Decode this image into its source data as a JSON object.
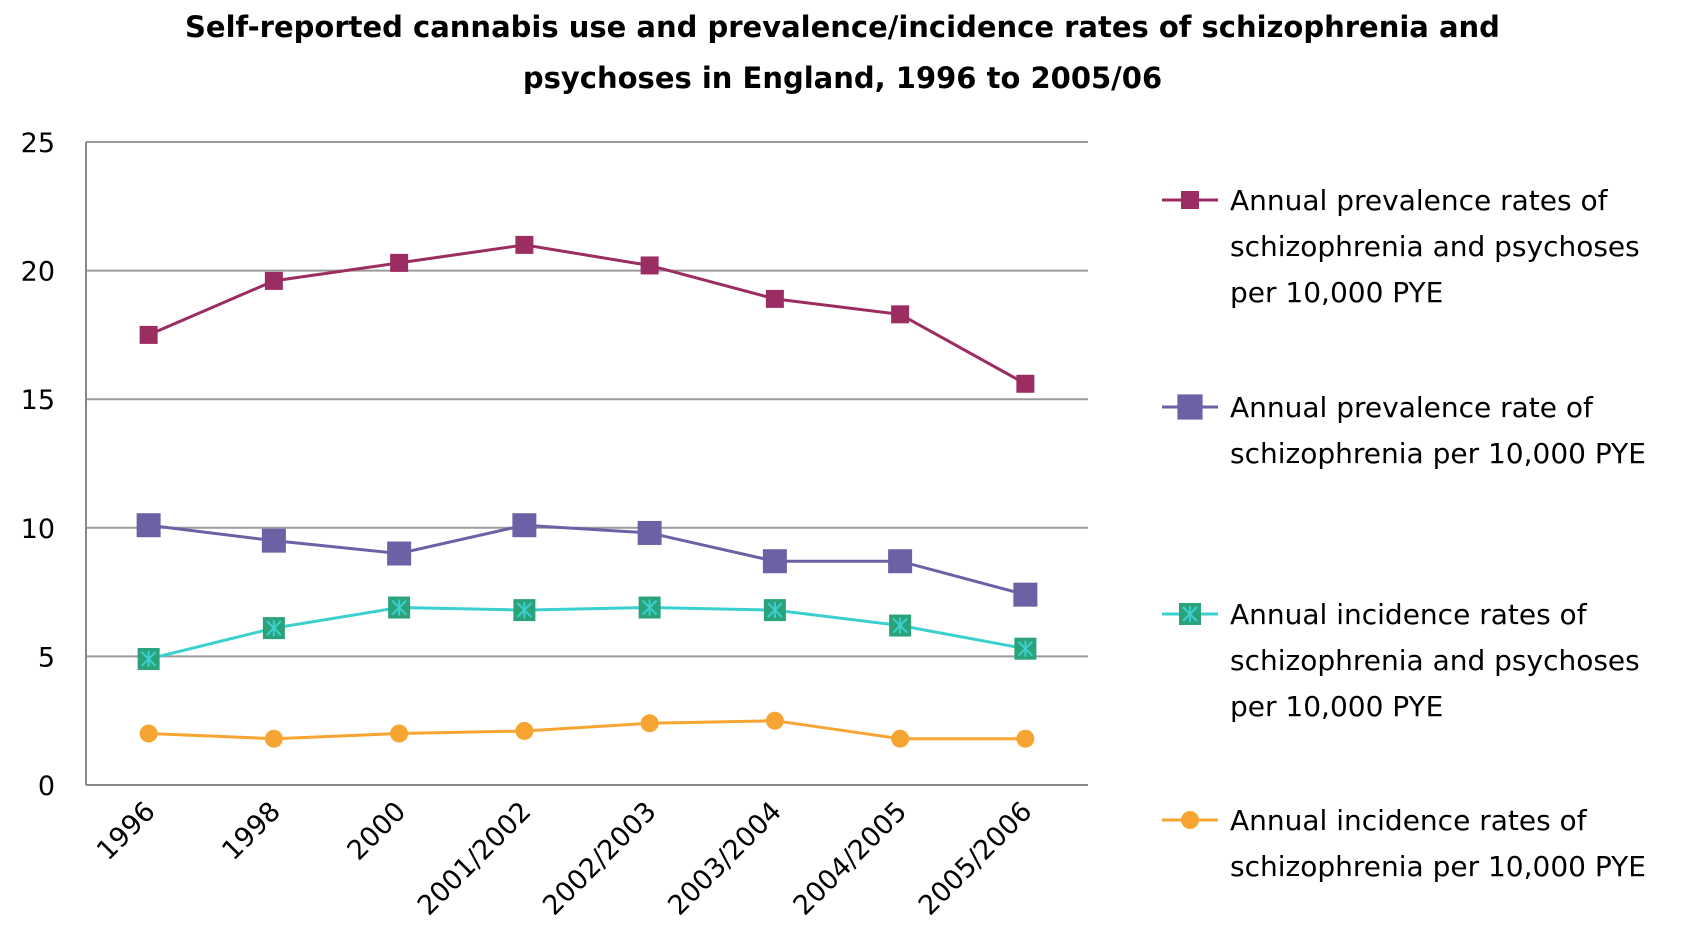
{
  "chart_data": {
    "type": "line",
    "title_lines": [
      "Self-reported cannabis use and prevalence/incidence rates of schizophrenia and",
      "psychoses in England, 1996 to 2005/06"
    ],
    "categories": [
      "1996",
      "1998",
      "2000",
      "2001/2002",
      "2002/2003",
      "2003/2004",
      "2004/2005",
      "2005/2006"
    ],
    "ylim": [
      0,
      25
    ],
    "yticks": [
      "0",
      "5",
      "10",
      "15",
      "20",
      "25"
    ],
    "grid": true,
    "legend_position": "right",
    "series": [
      {
        "name": "Annual prevalence rates of schizophrenia and psychoses per 10,000 PYE",
        "name_lines": [
          "Annual prevalence rates of",
          "schizophrenia and psychoses",
          "per 10,000 PYE"
        ],
        "values": [
          17.5,
          19.6,
          20.3,
          21.0,
          20.2,
          18.9,
          18.3,
          15.6
        ],
        "color": "#9b2d62",
        "marker": "square"
      },
      {
        "name": "Annual prevalence rate of schizophrenia per 10,000 PYE",
        "name_lines": [
          "Annual prevalence rate of",
          "schizophrenia per 10,000 PYE"
        ],
        "values": [
          10.1,
          9.5,
          9.0,
          10.1,
          9.8,
          8.7,
          8.7,
          7.4
        ],
        "color": "#6b62a6",
        "marker": "square-large"
      },
      {
        "name": "Annual incidence rates of schizophrenia and psychoses per 10,000 PYE",
        "name_lines": [
          "Annual incidence rates of",
          "schizophrenia and psychoses",
          "per 10,000 PYE"
        ],
        "values": [
          4.9,
          6.1,
          6.9,
          6.8,
          6.9,
          6.8,
          6.2,
          5.3
        ],
        "color": "#3ccfcf",
        "marker_fill": "#2aa37a",
        "marker": "star-square"
      },
      {
        "name": "Annual incidence rates of schizophrenia per 10,000 PYE",
        "name_lines": [
          "Annual incidence rates of",
          "schizophrenia per 10,000 PYE"
        ],
        "values": [
          2.0,
          1.8,
          2.0,
          2.1,
          2.4,
          2.5,
          1.8,
          1.8
        ],
        "color": "#f6a532",
        "marker": "circle"
      }
    ]
  }
}
